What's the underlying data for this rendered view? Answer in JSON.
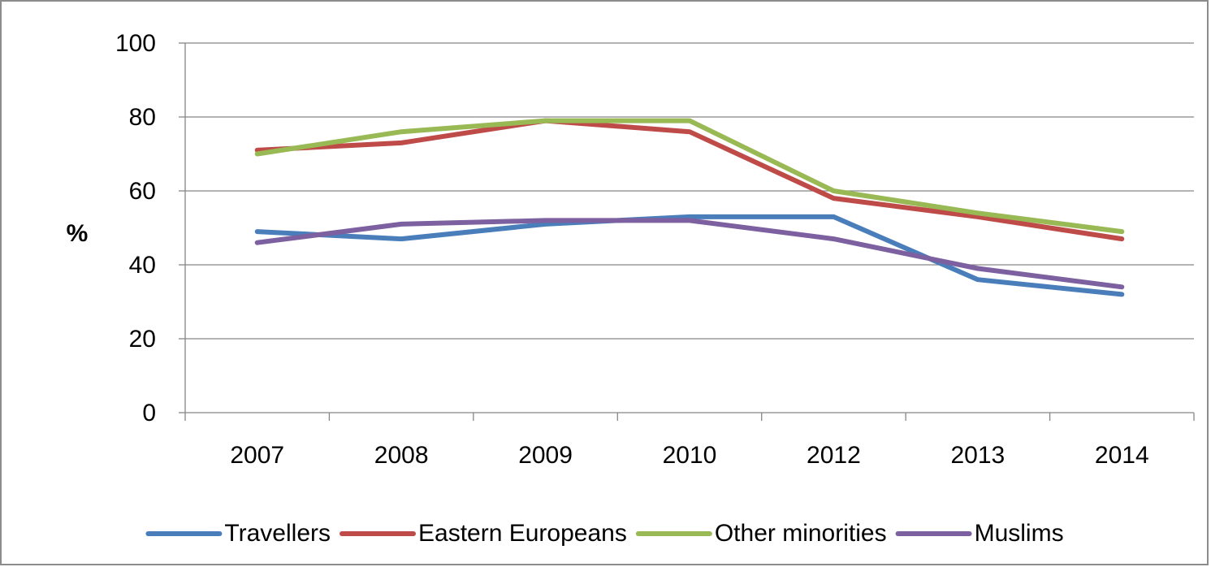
{
  "chart_data": {
    "type": "line",
    "title": "",
    "xlabel": "",
    "ylabel": "%",
    "categories": [
      "2007",
      "2008",
      "2009",
      "2010",
      "2012",
      "2013",
      "2014"
    ],
    "ylim": [
      0,
      100
    ],
    "yticks": [
      0,
      20,
      40,
      60,
      80,
      100
    ],
    "grid": true,
    "legend_position": "bottom",
    "series": [
      {
        "name": "Travellers",
        "color": "#4a7ebb",
        "values": [
          49,
          47,
          51,
          53,
          53,
          36,
          32
        ]
      },
      {
        "name": "Eastern Europeans",
        "color": "#be4b48",
        "values": [
          71,
          73,
          79,
          76,
          58,
          53,
          47
        ]
      },
      {
        "name": "Other minorities",
        "color": "#98b954",
        "values": [
          70,
          76,
          79,
          79,
          60,
          54,
          49
        ]
      },
      {
        "name": "Muslims",
        "color": "#7d60a0",
        "values": [
          46,
          51,
          52,
          52,
          47,
          39,
          34
        ]
      }
    ]
  }
}
